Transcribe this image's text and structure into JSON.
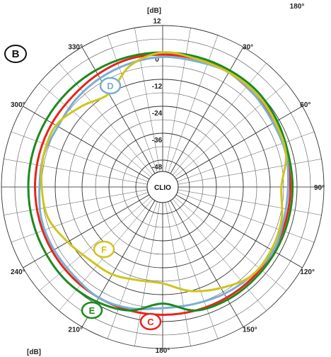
{
  "panel_label": "B",
  "corner_top_right": "180°",
  "corner_bottom_left": "[dB]",
  "chart_data": {
    "type": "polar",
    "radial_unit": "[dB]",
    "radial_range": [
      -60,
      12
    ],
    "radial_ticks": [
      "12",
      "0",
      "-12",
      "-24",
      "-36",
      "-48"
    ],
    "center_label": "CLIO",
    "angle_ticks": [
      "0°",
      "30°",
      "60°",
      "90°",
      "120°",
      "150°",
      "180°",
      "210°",
      "240°",
      "270°",
      "300°",
      "330°"
    ],
    "angle_tick_labels_shown": [
      {
        "angle": 30,
        "label": "30°"
      },
      {
        "angle": 60,
        "label": "60°"
      },
      {
        "angle": 90,
        "label": "90°"
      },
      {
        "angle": 120,
        "label": "120°"
      },
      {
        "angle": 150,
        "label": "150°"
      },
      {
        "angle": 180,
        "label": "180°"
      },
      {
        "angle": 210,
        "label": "210°"
      },
      {
        "angle": 240,
        "label": "240°"
      },
      {
        "angle": 300,
        "label": "300°"
      },
      {
        "angle": 330,
        "label": "330°"
      }
    ],
    "angles": [
      0,
      15,
      30,
      45,
      60,
      75,
      90,
      105,
      120,
      135,
      150,
      165,
      180,
      195,
      210,
      225,
      240,
      255,
      270,
      285,
      300,
      315,
      330,
      345
    ],
    "series": [
      {
        "name": "C",
        "color": "#e8231e",
        "values": [
          -1,
          -1,
          -1,
          -2,
          -2,
          -3,
          -3,
          -3,
          -3,
          -3,
          -3,
          -3,
          -3,
          -3,
          -3,
          -3,
          -3,
          -3,
          -3,
          -3,
          -3,
          -3,
          -2,
          -1
        ]
      },
      {
        "name": "D",
        "color": "#79b0d2",
        "values": [
          -2,
          -2,
          -1,
          -2,
          -3,
          -3,
          -4,
          -4,
          -3,
          -4,
          -5,
          -6,
          -6,
          -4,
          -3,
          -4,
          -4,
          -4,
          -5,
          -5,
          -6,
          -5,
          -4,
          -3
        ]
      },
      {
        "name": "E",
        "color": "#1c8a1e",
        "values": [
          0,
          0,
          0,
          0,
          -1,
          -2,
          -2,
          -2,
          -2,
          -2,
          -2,
          -3,
          -8,
          -3,
          -1,
          0,
          0,
          0,
          0,
          0,
          0,
          0,
          0,
          0
        ]
      },
      {
        "name": "F",
        "color": "#cfc41f",
        "values": [
          0,
          -1,
          -1,
          -1,
          -2,
          -3,
          -7,
          -5,
          -4,
          -4,
          -8,
          -12,
          -17,
          -17,
          -15,
          -14,
          -11,
          -7,
          -6,
          -5,
          -5,
          -9,
          -12,
          -4
        ]
      }
    ]
  }
}
